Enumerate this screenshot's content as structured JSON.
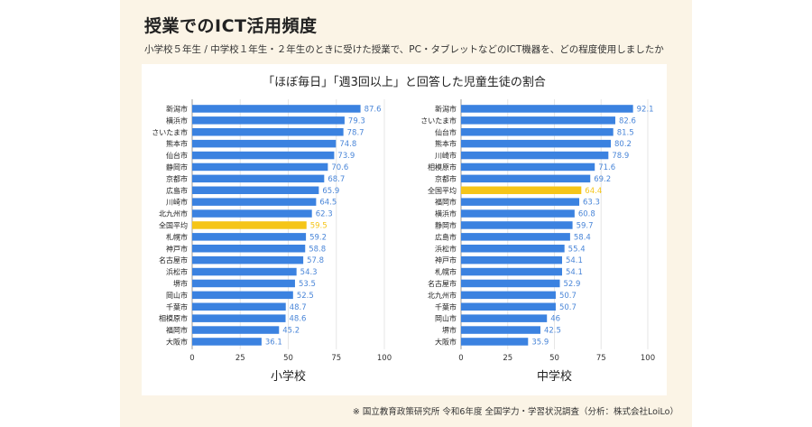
{
  "title": "授業でのICT活用頻度",
  "subtitle": "小学校５年生 / 中学校１年生・２年生のときに受けた授業で、PC・タブレットなどのICT機器を、どの程度使用しましたか",
  "chart_title": "「ほぼ毎日」「週3回以上」と回答した児童生徒の割合",
  "footnote": "※ 国立教育政策研究所 令和6年度 全国学力・学習状況調査（分析：株式会社LoiLo）",
  "colors": {
    "bar": "#3b82e0",
    "highlight": "#f5c518",
    "value_text": "#4a86d8",
    "highlight_text": "#f5c518",
    "grid": "#e6e6e6",
    "axis": "#999999"
  },
  "chart_data": [
    {
      "type": "bar",
      "orientation": "horizontal",
      "label": "小学校",
      "highlight": "全国平均",
      "xlim": [
        0,
        100
      ],
      "xticks": [
        0,
        25,
        50,
        75,
        100
      ],
      "categories": [
        "新潟市",
        "横浜市",
        "さいたま市",
        "熊本市",
        "仙台市",
        "静岡市",
        "京都市",
        "広島市",
        "川崎市",
        "北九州市",
        "全国平均",
        "札幌市",
        "神戸市",
        "名古屋市",
        "浜松市",
        "堺市",
        "岡山市",
        "千葉市",
        "相模原市",
        "福岡市",
        "大阪市"
      ],
      "values": [
        87.6,
        79.3,
        78.7,
        74.8,
        73.9,
        70.6,
        68.7,
        65.9,
        64.5,
        62.3,
        59.5,
        59.2,
        58.8,
        57.8,
        54.3,
        53.5,
        52.5,
        48.7,
        48.6,
        45.2,
        36.1
      ]
    },
    {
      "type": "bar",
      "orientation": "horizontal",
      "label": "中学校",
      "highlight": "全国平均",
      "xlim": [
        0,
        100
      ],
      "xticks": [
        0,
        25,
        50,
        75,
        100
      ],
      "categories": [
        "新潟市",
        "さいたま市",
        "仙台市",
        "熊本市",
        "川崎市",
        "相模原市",
        "京都市",
        "全国平均",
        "福岡市",
        "横浜市",
        "静岡市",
        "広島市",
        "浜松市",
        "神戸市",
        "札幌市",
        "名古屋市",
        "北九州市",
        "千葉市",
        "岡山市",
        "堺市",
        "大阪市"
      ],
      "values": [
        92.1,
        82.6,
        81.5,
        80.2,
        78.9,
        71.6,
        69.2,
        64.4,
        63.3,
        60.8,
        59.7,
        58.4,
        55.4,
        54.1,
        54.1,
        52.9,
        50.7,
        50.7,
        46,
        42.5,
        35.9
      ]
    }
  ]
}
